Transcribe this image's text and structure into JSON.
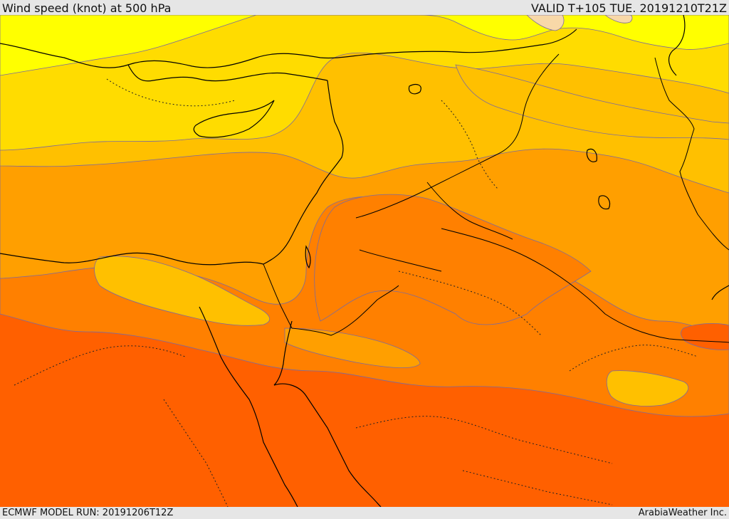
{
  "header": {
    "title": "Wind speed (knot) at 500 hPa",
    "valid": "VALID T+105 TUE. 20191210T21Z"
  },
  "footer": {
    "model_run": "ECMWF MODEL RUN: 20191206T12Z",
    "credit": "ArabiaWeather Inc."
  },
  "map": {
    "field": "wind-speed-500hpa",
    "colors": {
      "band_pale": "#f8d8a8",
      "band_yellow": "#ffff00",
      "band_gold": "#ffdc00",
      "band_amber": "#ffc000",
      "band_orange": "#ff9f00",
      "band_dark_orange": "#ff8000",
      "band_red_orange": "#ff6000",
      "contour_line": "#7a6aa0",
      "coastline": "#000000",
      "border_dotted": "#222222"
    }
  }
}
